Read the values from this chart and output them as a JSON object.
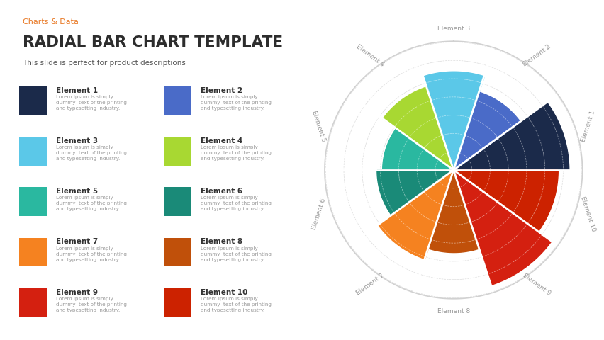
{
  "title_tag": "Charts & Data",
  "title": "RADIAL BAR CHART TEMPLATE",
  "subtitle": "This slide is perfect for product descriptions",
  "background_color": "#ffffff",
  "title_tag_color": "#e87722",
  "title_color": "#2d2d2d",
  "subtitle_color": "#555555",
  "elements": [
    {
      "name": "Element 1",
      "color": "#1b2a4a",
      "value": 0.85
    },
    {
      "name": "Element 2",
      "color": "#4a6bc8",
      "value": 0.55
    },
    {
      "name": "Element 3",
      "color": "#5bc8e8",
      "value": 0.7
    },
    {
      "name": "Element 4",
      "color": "#a8d832",
      "value": 0.6
    },
    {
      "name": "Element 5",
      "color": "#2ab8a0",
      "value": 0.45
    },
    {
      "name": "Element 6",
      "color": "#1a8a78",
      "value": 0.5
    },
    {
      "name": "Element 7",
      "color": "#f58220",
      "value": 0.65
    },
    {
      "name": "Element 8",
      "color": "#c0500a",
      "value": 0.55
    },
    {
      "name": "Element 9",
      "color": "#d42010",
      "value": 0.9
    },
    {
      "name": "Element 10",
      "color": "#cc2200",
      "value": 0.75
    }
  ],
  "icon_colors": [
    "#1b2a4a",
    "#4a6bc8",
    "#5bc8e8",
    "#a8d832",
    "#2ab8a0",
    "#1a8a78",
    "#f58220",
    "#c0500a",
    "#d42010",
    "#cc2200"
  ],
  "desc_text": "Lorem ipsum is simply\ndummy  text of the printing\nand typesetting industry.",
  "grid_color": "#cccccc",
  "label_color": "#999999",
  "n_rings": 7
}
